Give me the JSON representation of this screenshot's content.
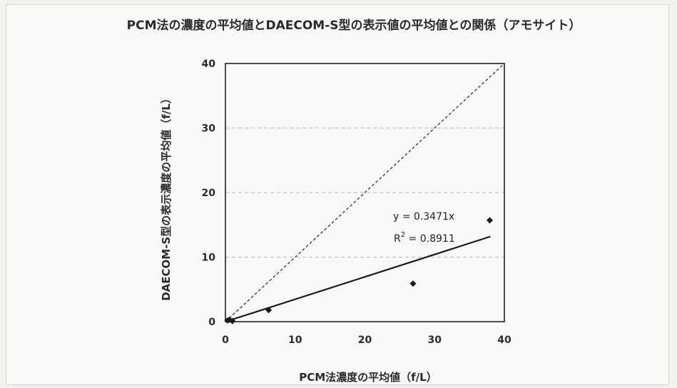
{
  "chart_data": {
    "type": "scatter",
    "title": "PCM法の濃度の平均値とDAECOM-S型の表示値の平均値との関係（アモサイト）",
    "xlabel": "PCM法濃度の平均値（f/L）",
    "ylabel": "DAECOM-S型の表示濃度の平均値（f/L）",
    "xlim": [
      0,
      40
    ],
    "ylim": [
      0,
      40
    ],
    "xticks": [
      "0",
      "10",
      "20",
      "30",
      "40"
    ],
    "yticks": [
      "0",
      "10",
      "20",
      "30",
      "40"
    ],
    "grid": "horizontal dashed",
    "points": [
      {
        "x": 0.3,
        "y": 0.2
      },
      {
        "x": 0.6,
        "y": 0.3
      },
      {
        "x": 1.0,
        "y": 0.1
      },
      {
        "x": 6.2,
        "y": 1.8
      },
      {
        "x": 26.9,
        "y": 5.9
      },
      {
        "x": 37.9,
        "y": 15.7
      }
    ],
    "trendline": {
      "slope": 0.3471,
      "x_range": [
        0,
        38
      ]
    },
    "reference_line": {
      "slope": 1
    },
    "equation": "y = 0.3471x",
    "r2_label": "R",
    "r2_sup": "2",
    "r2_value": " = 0.8911"
  }
}
